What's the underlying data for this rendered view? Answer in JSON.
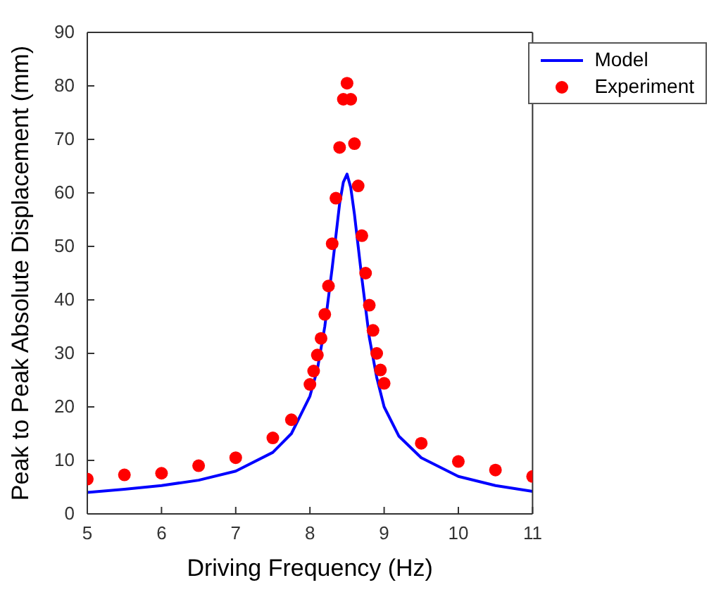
{
  "chart_data": {
    "type": "scatter",
    "xlabel": "Driving Frequency (Hz)",
    "ylabel": "Peak to Peak Absolute Displacement (mm)",
    "xlim": [
      5,
      11
    ],
    "xticks": [
      5,
      6,
      7,
      8,
      9,
      10,
      11
    ],
    "ylim": [
      0,
      90
    ],
    "yticks": [
      0,
      10,
      20,
      30,
      40,
      50,
      60,
      70,
      80,
      90
    ],
    "grid": false,
    "legend": "top right",
    "series": [
      {
        "name": "Model",
        "type": "line",
        "color": "#0000ff",
        "marker": "none",
        "line_style": "solid",
        "x": [
          5,
          5.5,
          6,
          6.5,
          7,
          7.5,
          7.75,
          8,
          8.1,
          8.2,
          8.3,
          8.4,
          8.45,
          8.5,
          8.55,
          8.6,
          8.7,
          8.8,
          8.9,
          9,
          9.2,
          9.5,
          10,
          10.5,
          11
        ],
        "values": [
          4,
          4.6,
          5.3,
          6.3,
          8,
          11.5,
          15,
          22,
          27,
          35,
          46,
          58,
          62,
          63.5,
          61,
          56,
          44,
          33,
          25.5,
          20,
          14.5,
          10.5,
          7,
          5.3,
          4.2
        ]
      },
      {
        "name": "Experiment",
        "color": "#ff0000",
        "marker": "circle",
        "x": [
          5,
          5.5,
          6,
          6.5,
          7,
          7.5,
          7.75,
          8,
          8.05,
          8.1,
          8.15,
          8.2,
          8.25,
          8.3,
          8.35,
          8.4,
          8.45,
          8.5,
          8.55,
          8.6,
          8.65,
          8.7,
          8.75,
          8.8,
          8.85,
          8.9,
          8.95,
          9,
          9.5,
          10,
          10.5,
          11
        ],
        "values": [
          6.5,
          7.3,
          7.6,
          9,
          10.5,
          14.2,
          17.6,
          24.2,
          26.7,
          29.7,
          32.8,
          37.3,
          42.6,
          50.5,
          59,
          68.5,
          77.5,
          80.5,
          77.5,
          69.2,
          61.3,
          52,
          45,
          39,
          34.3,
          30,
          26.9,
          24.4,
          13.2,
          9.8,
          8.2,
          7
        ]
      }
    ]
  }
}
